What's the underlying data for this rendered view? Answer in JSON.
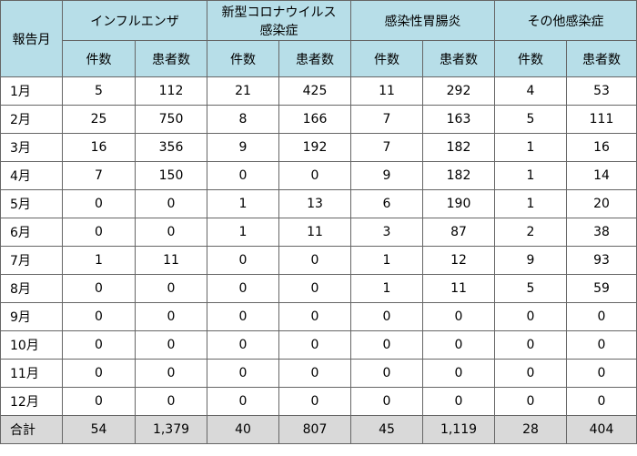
{
  "table": {
    "header": {
      "month": "報告月",
      "groups": [
        [
          "インフルエンザ"
        ],
        [
          "新型コロナウイルス",
          "感染症"
        ],
        [
          "感染性胃腸炎"
        ],
        [
          "その他感染症"
        ]
      ],
      "sub": [
        "件数",
        "患者数",
        "件数",
        "患者数",
        "件数",
        "患者数",
        "件数",
        "患者数"
      ]
    },
    "rows": [
      [
        "1月",
        "5",
        "112",
        "21",
        "425",
        "11",
        "292",
        "4",
        "53"
      ],
      [
        "2月",
        "25",
        "750",
        "8",
        "166",
        "7",
        "163",
        "5",
        "111"
      ],
      [
        "3月",
        "16",
        "356",
        "9",
        "192",
        "7",
        "182",
        "1",
        "16"
      ],
      [
        "4月",
        "7",
        "150",
        "0",
        "0",
        "9",
        "182",
        "1",
        "14"
      ],
      [
        "5月",
        "0",
        "0",
        "1",
        "13",
        "6",
        "190",
        "1",
        "20"
      ],
      [
        "6月",
        "0",
        "0",
        "1",
        "11",
        "3",
        "87",
        "2",
        "38"
      ],
      [
        "7月",
        "1",
        "11",
        "0",
        "0",
        "1",
        "12",
        "9",
        "93"
      ],
      [
        "8月",
        "0",
        "0",
        "0",
        "0",
        "1",
        "11",
        "5",
        "59"
      ],
      [
        "9月",
        "0",
        "0",
        "0",
        "0",
        "0",
        "0",
        "0",
        "0"
      ],
      [
        "10月",
        "0",
        "0",
        "0",
        "0",
        "0",
        "0",
        "0",
        "0"
      ],
      [
        "11月",
        "0",
        "0",
        "0",
        "0",
        "0",
        "0",
        "0",
        "0"
      ],
      [
        "12月",
        "0",
        "0",
        "0",
        "0",
        "0",
        "0",
        "0",
        "0"
      ]
    ],
    "total": [
      "合計",
      "54",
      "1,379",
      "40",
      "807",
      "45",
      "1,119",
      "28",
      "404"
    ]
  }
}
